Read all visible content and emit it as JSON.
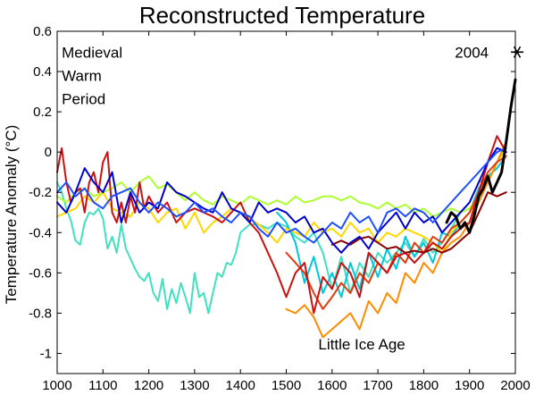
{
  "chart_data": {
    "type": "line",
    "title": "Reconstructed Temperature",
    "xlabel": "",
    "ylabel": "Temperature Anomaly (°C)",
    "xlim": [
      1000,
      2000
    ],
    "ylim": [
      -1.1,
      0.6
    ],
    "x_ticks": [
      1000,
      1100,
      1200,
      1300,
      1400,
      1500,
      1600,
      1700,
      1800,
      1900,
      2000
    ],
    "y_ticks": [
      0.6,
      0.4,
      0.2,
      0,
      -0.2,
      -0.4,
      -0.6,
      -0.8,
      -1
    ],
    "y_tick_labels": [
      "0.6",
      "0.4",
      "0.2",
      "0",
      "-0.2",
      "-0.4",
      "-0.6",
      "-0.8",
      "-1"
    ],
    "grid": false,
    "annotations": [
      {
        "id": "medieval",
        "lines": [
          "Medieval",
          "Warm",
          "Period"
        ],
        "x": 1010,
        "y": 0.47
      },
      {
        "id": "lia",
        "lines": [
          "Little Ice Age"
        ],
        "x": 1570,
        "y": -0.98
      },
      {
        "id": "year2004",
        "lines": [
          "2004"
        ],
        "x": 1868,
        "y": 0.47
      }
    ],
    "marker": {
      "label": "2004",
      "x": 2004,
      "y": 0.47,
      "symbol": "asterisk"
    },
    "series": [
      {
        "color": "#40e0c0",
        "width": 2,
        "x": [
          1000,
          1010,
          1020,
          1030,
          1040,
          1050,
          1060,
          1070,
          1080,
          1090,
          1100,
          1110,
          1120,
          1130,
          1140,
          1150,
          1160,
          1170,
          1180,
          1190,
          1200,
          1210,
          1220,
          1230,
          1240,
          1250,
          1260,
          1270,
          1280,
          1290,
          1300,
          1310,
          1320,
          1330,
          1340,
          1350,
          1360,
          1370,
          1380,
          1390,
          1400,
          1420,
          1440,
          1460,
          1480,
          1500,
          1520,
          1540,
          1560,
          1580,
          1600,
          1620,
          1640,
          1660,
          1680,
          1700,
          1720,
          1740,
          1760,
          1780,
          1800,
          1820,
          1840,
          1860,
          1880,
          1900,
          1920,
          1940,
          1960,
          1980
        ],
        "y": [
          -0.15,
          -0.2,
          -0.28,
          -0.34,
          -0.44,
          -0.46,
          -0.35,
          -0.3,
          -0.31,
          -0.28,
          -0.33,
          -0.48,
          -0.42,
          -0.5,
          -0.36,
          -0.48,
          -0.53,
          -0.58,
          -0.62,
          -0.64,
          -0.6,
          -0.7,
          -0.74,
          -0.63,
          -0.78,
          -0.68,
          -0.75,
          -0.65,
          -0.72,
          -0.8,
          -0.6,
          -0.72,
          -0.7,
          -0.8,
          -0.7,
          -0.6,
          -0.62,
          -0.55,
          -0.56,
          -0.5,
          -0.4,
          -0.36,
          -0.36,
          -0.38,
          -0.35,
          -0.37,
          -0.42,
          -0.45,
          -0.4,
          -0.5,
          -0.68,
          -0.52,
          -0.7,
          -0.55,
          -0.62,
          -0.5,
          -0.55,
          -0.5,
          -0.45,
          -0.52,
          -0.43,
          -0.5,
          -0.45,
          -0.38,
          -0.3,
          -0.25,
          -0.15,
          -0.12,
          -0.08,
          -0.02
        ]
      },
      {
        "color": "#00c8dc",
        "width": 2,
        "x": [
          1480,
          1500,
          1520,
          1540,
          1560,
          1580,
          1600,
          1620,
          1640,
          1660,
          1680,
          1700,
          1720,
          1740,
          1760,
          1780,
          1800,
          1820,
          1840,
          1860,
          1880,
          1900,
          1920,
          1940,
          1960,
          1980
        ],
        "y": [
          -0.3,
          -0.35,
          -0.45,
          -0.65,
          -0.52,
          -0.7,
          -0.6,
          -0.72,
          -0.55,
          -0.68,
          -0.5,
          -0.62,
          -0.48,
          -0.58,
          -0.42,
          -0.52,
          -0.45,
          -0.55,
          -0.4,
          -0.42,
          -0.35,
          -0.3,
          -0.18,
          -0.12,
          -0.08,
          -0.02
        ]
      },
      {
        "color": "#adff2f",
        "width": 2,
        "x": [
          1000,
          1020,
          1040,
          1060,
          1080,
          1100,
          1120,
          1140,
          1160,
          1180,
          1200,
          1220,
          1240,
          1260,
          1280,
          1300,
          1320,
          1340,
          1360,
          1380,
          1400,
          1420,
          1440,
          1460,
          1480,
          1500,
          1520,
          1540,
          1560,
          1580,
          1600,
          1620,
          1640,
          1660,
          1680,
          1700,
          1720,
          1740,
          1760,
          1780,
          1800,
          1820,
          1840,
          1860,
          1880,
          1900,
          1920,
          1940,
          1960,
          1980
        ],
        "y": [
          -0.22,
          -0.25,
          -0.2,
          -0.18,
          -0.22,
          -0.2,
          -0.18,
          -0.15,
          -0.2,
          -0.15,
          -0.12,
          -0.18,
          -0.16,
          -0.2,
          -0.24,
          -0.2,
          -0.24,
          -0.26,
          -0.22,
          -0.24,
          -0.26,
          -0.22,
          -0.24,
          -0.26,
          -0.24,
          -0.26,
          -0.22,
          -0.25,
          -0.24,
          -0.22,
          -0.22,
          -0.24,
          -0.22,
          -0.25,
          -0.26,
          -0.28,
          -0.25,
          -0.28,
          -0.26,
          -0.3,
          -0.28,
          -0.32,
          -0.3,
          -0.28,
          -0.3,
          -0.28,
          -0.22,
          -0.15,
          -0.05,
          0.02
        ]
      },
      {
        "color": "#ffd700",
        "width": 2,
        "x": [
          1000,
          1020,
          1040,
          1060,
          1080,
          1100,
          1120,
          1140,
          1160,
          1180,
          1200,
          1220,
          1240,
          1260,
          1280,
          1300,
          1320,
          1340,
          1360,
          1380,
          1400,
          1420,
          1440,
          1460,
          1480,
          1500,
          1520,
          1540,
          1560,
          1580,
          1600,
          1620,
          1640,
          1660,
          1680,
          1700,
          1720,
          1740,
          1760,
          1780,
          1800,
          1820,
          1840,
          1860,
          1880,
          1900,
          1920,
          1940,
          1960,
          1980
        ],
        "y": [
          -0.32,
          -0.3,
          -0.28,
          -0.22,
          -0.25,
          -0.2,
          -0.28,
          -0.3,
          -0.32,
          -0.25,
          -0.28,
          -0.35,
          -0.3,
          -0.28,
          -0.38,
          -0.3,
          -0.4,
          -0.35,
          -0.32,
          -0.28,
          -0.3,
          -0.33,
          -0.36,
          -0.4,
          -0.45,
          -0.38,
          -0.4,
          -0.42,
          -0.35,
          -0.4,
          -0.38,
          -0.42,
          -0.35,
          -0.4,
          -0.38,
          -0.45,
          -0.4,
          -0.42,
          -0.38,
          -0.4,
          -0.42,
          -0.45,
          -0.5,
          -0.4,
          -0.35,
          -0.3,
          -0.22,
          -0.15,
          -0.05,
          0.02
        ]
      },
      {
        "color": "#ff8c00",
        "width": 2,
        "x": [
          1500,
          1520,
          1540,
          1560,
          1580,
          1600,
          1620,
          1640,
          1660,
          1680,
          1700,
          1720,
          1740,
          1760,
          1780,
          1800,
          1820,
          1840,
          1860,
          1880,
          1900,
          1920,
          1940,
          1960,
          1980
        ],
        "y": [
          -0.78,
          -0.8,
          -0.76,
          -0.82,
          -0.92,
          -0.88,
          -0.84,
          -0.8,
          -0.88,
          -0.74,
          -0.8,
          -0.7,
          -0.75,
          -0.6,
          -0.65,
          -0.55,
          -0.6,
          -0.5,
          -0.45,
          -0.42,
          -0.35,
          -0.25,
          -0.15,
          -0.05,
          0.05
        ]
      },
      {
        "color": "#e03c10",
        "width": 2,
        "x": [
          1500,
          1520,
          1540,
          1560,
          1580,
          1600,
          1620,
          1640,
          1660,
          1680,
          1700,
          1720,
          1740,
          1760,
          1780,
          1800,
          1820,
          1840,
          1860,
          1880,
          1900,
          1920,
          1940,
          1960,
          1980
        ],
        "y": [
          -0.5,
          -0.55,
          -0.6,
          -0.7,
          -0.78,
          -0.72,
          -0.65,
          -0.7,
          -0.6,
          -0.65,
          -0.55,
          -0.6,
          -0.5,
          -0.55,
          -0.45,
          -0.5,
          -0.42,
          -0.45,
          -0.38,
          -0.35,
          -0.3,
          -0.2,
          -0.1,
          -0.05,
          -0.02
        ]
      },
      {
        "color": "#cc1010",
        "width": 2,
        "x": [
          1000,
          1010,
          1020,
          1030,
          1040,
          1050,
          1060,
          1070,
          1080,
          1090,
          1100,
          1110,
          1120,
          1130,
          1140,
          1150,
          1160,
          1170,
          1180,
          1190,
          1200,
          1220,
          1240,
          1260,
          1280,
          1300,
          1320,
          1340,
          1360,
          1380,
          1400,
          1420,
          1440,
          1460,
          1480,
          1500,
          1520,
          1540,
          1560,
          1580,
          1600,
          1620,
          1640,
          1660,
          1680,
          1700,
          1720,
          1740,
          1760,
          1780,
          1800,
          1820,
          1840,
          1860,
          1880,
          1900,
          1920,
          1940,
          1960,
          1980
        ],
        "y": [
          -0.1,
          0.02,
          -0.15,
          -0.25,
          -0.2,
          -0.18,
          -0.3,
          -0.15,
          -0.1,
          -0.2,
          -0.05,
          0.0,
          -0.3,
          -0.35,
          -0.25,
          -0.35,
          -0.22,
          -0.3,
          -0.15,
          -0.28,
          -0.22,
          -0.3,
          -0.25,
          -0.35,
          -0.3,
          -0.28,
          -0.3,
          -0.32,
          -0.35,
          -0.3,
          -0.25,
          -0.35,
          -0.4,
          -0.5,
          -0.6,
          -0.72,
          -0.6,
          -0.55,
          -0.8,
          -0.62,
          -0.68,
          -0.55,
          -0.6,
          -0.72,
          -0.5,
          -0.55,
          -0.6,
          -0.52,
          -0.5,
          -0.55,
          -0.5,
          -0.45,
          -0.48,
          -0.42,
          -0.38,
          -0.35,
          -0.2,
          -0.05,
          0.08,
          0.0
        ]
      },
      {
        "color": "#8b0000",
        "width": 2,
        "x": [
          1600,
          1620,
          1640,
          1660,
          1680,
          1700,
          1720,
          1740,
          1760,
          1780,
          1800,
          1820,
          1840,
          1860,
          1880,
          1900,
          1920,
          1940,
          1960,
          1980
        ],
        "y": [
          -0.46,
          -0.44,
          -0.46,
          -0.43,
          -0.42,
          -0.45,
          -0.48,
          -0.47,
          -0.5,
          -0.49,
          -0.5,
          -0.48,
          -0.5,
          -0.48,
          -0.44,
          -0.4,
          -0.3,
          -0.2,
          -0.22,
          -0.2
        ]
      },
      {
        "color": "#0000cd",
        "width": 2,
        "x": [
          1000,
          1020,
          1040,
          1060,
          1080,
          1100,
          1120,
          1140,
          1160,
          1180,
          1200,
          1220,
          1240,
          1260,
          1280,
          1300,
          1320,
          1340,
          1360,
          1380,
          1400,
          1420,
          1440,
          1460,
          1480,
          1500,
          1520,
          1540,
          1560,
          1580,
          1600,
          1620,
          1640,
          1660,
          1680,
          1700,
          1720,
          1740,
          1760,
          1780,
          1800,
          1820,
          1840,
          1860,
          1880,
          1900,
          1920,
          1940,
          1960,
          1980
        ],
        "y": [
          -0.25,
          -0.3,
          -0.2,
          -0.08,
          -0.15,
          -0.2,
          -0.1,
          -0.35,
          -0.2,
          -0.3,
          -0.25,
          -0.28,
          -0.15,
          -0.2,
          -0.22,
          -0.25,
          -0.28,
          -0.3,
          -0.2,
          -0.28,
          -0.3,
          -0.35,
          -0.25,
          -0.3,
          -0.28,
          -0.3,
          -0.35,
          -0.32,
          -0.4,
          -0.38,
          -0.45,
          -0.5,
          -0.45,
          -0.42,
          -0.48,
          -0.4,
          -0.35,
          -0.3,
          -0.38,
          -0.3,
          -0.35,
          -0.32,
          -0.4,
          -0.35,
          -0.3,
          -0.25,
          -0.15,
          -0.05,
          0.02,
          0.0
        ]
      },
      {
        "color": "#1f4fff",
        "width": 2,
        "x": [
          1000,
          1020,
          1040,
          1060,
          1080,
          1100,
          1120,
          1140,
          1160,
          1180,
          1200,
          1220,
          1240,
          1260,
          1280,
          1300,
          1320,
          1340,
          1360,
          1380,
          1400,
          1420,
          1440,
          1460,
          1480,
          1500,
          1520,
          1540,
          1560,
          1580,
          1600,
          1620,
          1640,
          1660,
          1680,
          1700,
          1720,
          1740,
          1760,
          1780,
          1800,
          1820,
          1840,
          1860,
          1880,
          1900,
          1920,
          1940,
          1960,
          1980
        ],
        "y": [
          -0.2,
          -0.15,
          -0.22,
          -0.18,
          -0.25,
          -0.28,
          -0.22,
          -0.2,
          -0.18,
          -0.25,
          -0.3,
          -0.25,
          -0.28,
          -0.32,
          -0.3,
          -0.25,
          -0.3,
          -0.28,
          -0.32,
          -0.35,
          -0.3,
          -0.32,
          -0.38,
          -0.42,
          -0.35,
          -0.4,
          -0.38,
          -0.42,
          -0.45,
          -0.4,
          -0.35,
          -0.38,
          -0.3,
          -0.35,
          -0.32,
          -0.4,
          -0.3,
          -0.28,
          -0.32,
          -0.28,
          -0.3,
          -0.35,
          -0.3,
          -0.25,
          -0.2,
          -0.15,
          -0.1,
          -0.05,
          0.0,
          0.02
        ]
      },
      {
        "color": "#000000",
        "width": 3,
        "x": [
          1850,
          1860,
          1870,
          1880,
          1890,
          1900,
          1910,
          1920,
          1930,
          1940,
          1950,
          1960,
          1970,
          1980,
          1990,
          2000
        ],
        "y": [
          -0.35,
          -0.3,
          -0.32,
          -0.38,
          -0.35,
          -0.4,
          -0.32,
          -0.22,
          -0.18,
          -0.12,
          -0.2,
          -0.15,
          -0.1,
          0.05,
          0.22,
          0.36
        ]
      }
    ]
  }
}
